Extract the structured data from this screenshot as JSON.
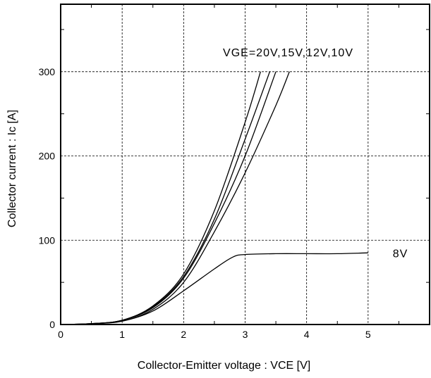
{
  "chart_data": {
    "type": "line",
    "title": "",
    "xlabel": "Collector-Emitter voltage : VCE [V]",
    "ylabel": "Collector current : Ic [A]",
    "xlim": [
      0,
      6
    ],
    "ylim": [
      0,
      380
    ],
    "xticks": [
      0,
      1,
      2,
      3,
      4,
      5
    ],
    "yticks": [
      0,
      100,
      200,
      300
    ],
    "grid": true,
    "series": [
      {
        "name": "20V",
        "x": [
          0,
          0.5,
          1.0,
          1.5,
          2.0,
          2.5,
          3.0,
          3.25
        ],
        "y": [
          0,
          1,
          5,
          22,
          60,
          135,
          240,
          300
        ]
      },
      {
        "name": "15V",
        "x": [
          0,
          0.5,
          1.0,
          1.5,
          2.0,
          2.5,
          3.0,
          3.4
        ],
        "y": [
          0,
          1,
          5,
          21,
          57,
          125,
          220,
          300
        ]
      },
      {
        "name": "12V",
        "x": [
          0,
          0.5,
          1.0,
          1.5,
          2.0,
          2.5,
          3.0,
          3.5
        ],
        "y": [
          0,
          1,
          5,
          20,
          55,
          120,
          200,
          300
        ]
      },
      {
        "name": "10V",
        "x": [
          0,
          0.5,
          1.0,
          1.5,
          2.0,
          2.5,
          3.0,
          3.5,
          3.72
        ],
        "y": [
          0,
          1,
          4,
          18,
          50,
          110,
          180,
          260,
          300
        ]
      },
      {
        "name": "8V",
        "x": [
          0,
          0.5,
          1.0,
          1.5,
          2.0,
          2.5,
          2.8,
          3.0,
          3.5,
          4.0,
          4.5,
          5.0
        ],
        "y": [
          0,
          1,
          4,
          16,
          40,
          66,
          80,
          83,
          84,
          84,
          84,
          85
        ]
      }
    ],
    "annotations": [
      {
        "text": "VGE=20V,15V,12V,10V",
        "x": 3.7,
        "y": 318
      },
      {
        "text": "8V",
        "x": 5.4,
        "y": 84
      }
    ]
  }
}
